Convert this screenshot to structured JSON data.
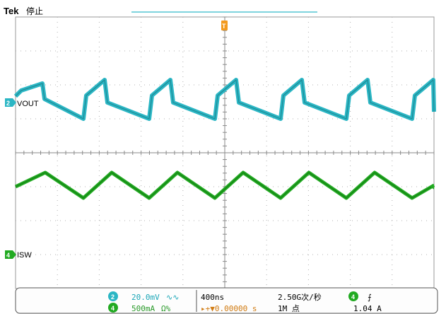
{
  "header": {
    "brand": "Tek",
    "run_state": "停止"
  },
  "channels": [
    {
      "number": "2",
      "label": "VOUT",
      "color": "#2bb6c4"
    },
    {
      "number": "4",
      "label": "ISW",
      "color": "#22aa22"
    }
  ],
  "trigger_marker": {
    "label": "T",
    "color": "#f39a1e"
  },
  "readout": {
    "ch2": {
      "number": "2",
      "scale": "20.0mV",
      "suffix": "∿∿"
    },
    "ch4": {
      "number": "4",
      "scale": "500mA",
      "suffix": "Ω%"
    },
    "timebase": "400ns",
    "trigger_position": "▸+▼0.00000 s",
    "sample_rate": "2.50G次/秒",
    "record_length": "1M 点",
    "trigger_source": "4",
    "trigger_slope": "⨍",
    "trigger_level": "1.04 A"
  },
  "colors": {
    "ch2": "#2bb6c4",
    "ch4": "#22aa22",
    "trigger": "#f39a1e",
    "grid": "#9a9a9a"
  }
}
